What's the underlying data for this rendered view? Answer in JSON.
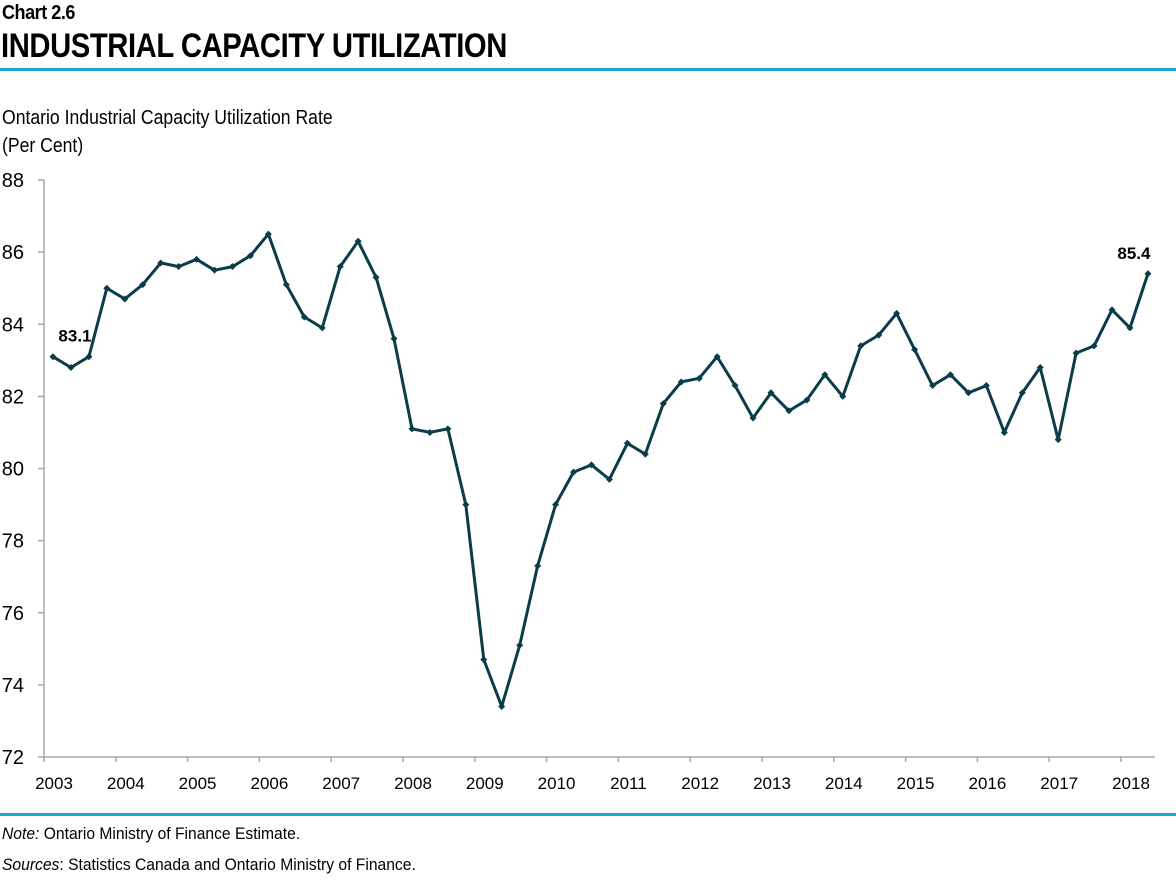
{
  "header": {
    "chart_number": "Chart 2.6",
    "title": "INDUSTRIAL CAPACITY UTILIZATION"
  },
  "footer": {
    "note_label": "Note:",
    "note_text": " Ontario Ministry of Finance Estimate.",
    "sources_label": "Sources",
    "sources_text": ": Statistics Canada and Ontario Ministry of Finance."
  },
  "colors": {
    "line": "#0b3c49",
    "rule": "#1aa7c8",
    "axis": "#a6a6a6"
  },
  "chart_data": {
    "type": "line",
    "title": "INDUSTRIAL CAPACITY UTILIZATION",
    "ylabel": "Ontario Industrial Capacity Utilization Rate",
    "yunit": "(Per Cent)",
    "xlabel": "",
    "frequency": "quarterly",
    "start": "2003Q1",
    "end": "2018Q2",
    "ylim": [
      72,
      88
    ],
    "yticks": [
      "72",
      "74",
      "76",
      "78",
      "80",
      "82",
      "84",
      "86",
      "88"
    ],
    "xticks": [
      "2003",
      "2004",
      "2005",
      "2006",
      "2007",
      "2008",
      "2009",
      "2010",
      "2011",
      "2012",
      "2013",
      "2014",
      "2015",
      "2016",
      "2017",
      "2018"
    ],
    "grid": false,
    "legend": "none",
    "markers": "diamond",
    "series": [
      {
        "values": [
          83.1,
          82.8,
          83.1,
          85.0,
          84.7,
          85.1,
          85.7,
          85.6,
          85.8,
          85.5,
          85.6,
          85.9,
          86.5,
          85.1,
          84.2,
          83.9,
          85.6,
          86.3,
          85.3,
          83.6,
          81.1,
          81.0,
          81.1,
          79.0,
          74.7,
          73.4,
          75.1,
          77.3,
          79.0,
          79.9,
          80.1,
          79.7,
          80.7,
          80.4,
          81.8,
          82.4,
          82.5,
          83.1,
          82.3,
          81.4,
          82.1,
          81.6,
          81.9,
          82.6,
          82.0,
          83.4,
          83.7,
          84.3,
          83.3,
          82.3,
          82.6,
          82.1,
          82.3,
          81.0,
          82.1,
          82.8,
          80.8,
          83.2,
          83.4,
          84.4,
          83.9,
          85.4
        ]
      }
    ],
    "annotations": [
      {
        "index": 0,
        "text": "83.1"
      },
      {
        "index": 61,
        "text": "85.4"
      }
    ]
  }
}
